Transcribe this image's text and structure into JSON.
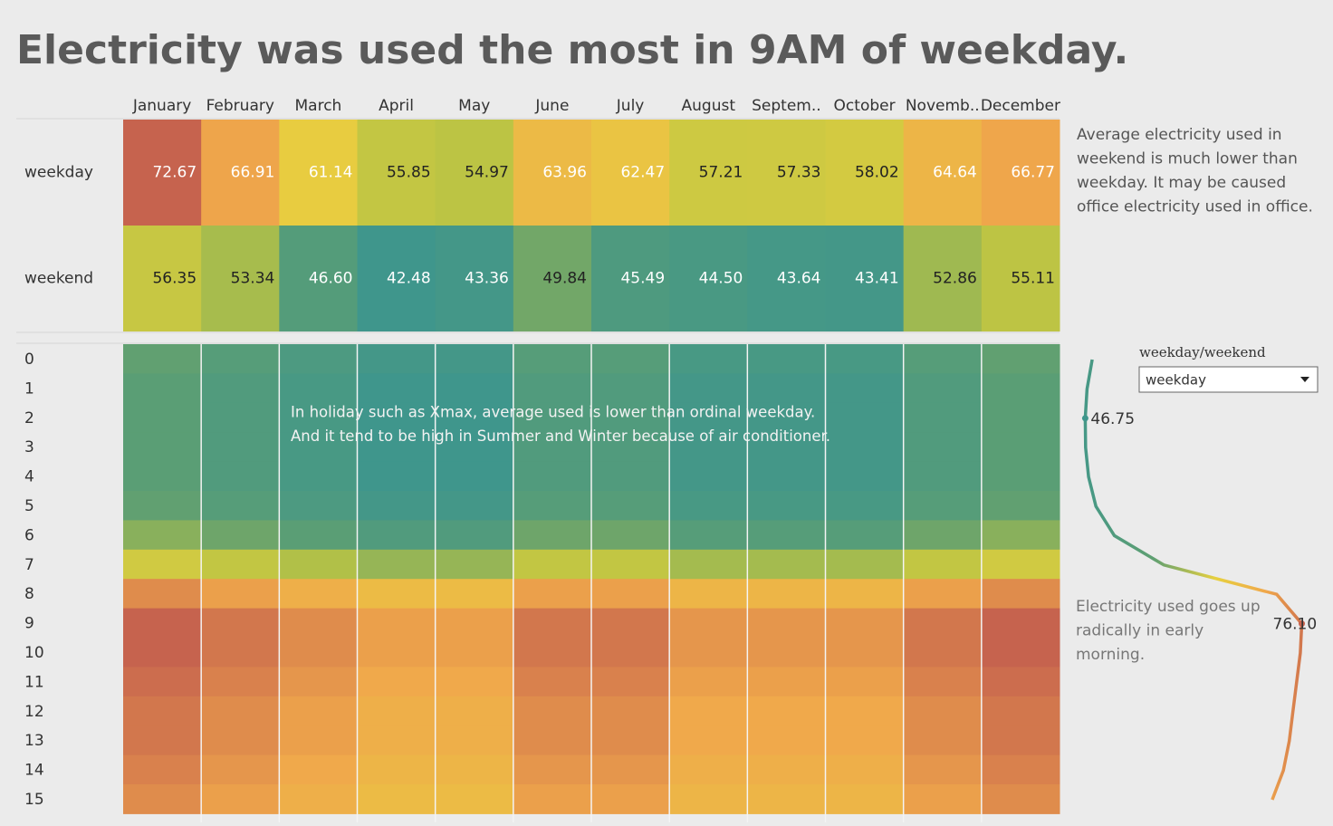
{
  "title": "Electricity was used the most in 9AM of weekday.",
  "chart_data": [
    {
      "type": "heatmap",
      "categories": [
        "January",
        "February",
        "March",
        "April",
        "May",
        "June",
        "July",
        "August",
        "Septem..",
        "October",
        "Novemb..",
        "December"
      ],
      "series": [
        {
          "name": "weekday",
          "values": [
            72.67,
            66.91,
            61.14,
            55.85,
            54.97,
            63.96,
            62.47,
            57.21,
            57.33,
            58.02,
            64.64,
            66.77
          ],
          "value_labels": [
            "72.67",
            "66.91",
            "61.14",
            "55.85",
            "54.97",
            "63.96",
            "62.47",
            "57.21",
            "57.33",
            "58.02",
            "64.64",
            "66.77"
          ]
        },
        {
          "name": "weekend",
          "values": [
            56.35,
            53.34,
            46.6,
            42.48,
            43.36,
            49.84,
            45.49,
            44.5,
            43.64,
            43.41,
            52.86,
            55.11
          ],
          "value_labels": [
            "56.35",
            "53.34",
            "46.60",
            "42.48",
            "43.36",
            "49.84",
            "45.49",
            "44.50",
            "43.64",
            "43.41",
            "52.86",
            "55.11"
          ]
        }
      ],
      "colors": [
        "#3f968c",
        "#5e9f72",
        "#b9c344",
        "#e7d03f",
        "#f0a84b",
        "#c6634e"
      ],
      "annotation": [
        "Average electricity used in",
        "weekend is much lower than",
        "weekday. It may be caused",
        "office electricity used in office."
      ]
    },
    {
      "type": "heatmap-detail",
      "y_categories": [
        "0",
        "1",
        "2",
        "3",
        "4",
        "5",
        "6",
        "7",
        "8",
        "9",
        "10",
        "11",
        "12",
        "13",
        "14",
        "15"
      ],
      "z": [
        [
          50,
          49,
          49,
          49,
          49,
          50,
          53,
          60,
          73,
          77,
          77,
          76,
          75,
          75,
          74,
          73
        ],
        [
          48,
          47,
          47,
          47,
          47,
          48,
          51,
          58,
          71,
          75,
          75,
          74,
          73,
          73,
          72,
          71
        ],
        [
          46,
          45,
          45,
          45,
          45,
          46,
          49,
          56,
          69,
          73,
          73,
          72,
          71,
          71,
          70,
          69
        ],
        [
          44,
          43,
          43,
          43,
          43,
          44,
          47,
          54,
          67,
          71,
          71,
          70,
          69,
          69,
          68,
          67
        ],
        [
          44,
          43,
          43,
          43,
          43,
          44,
          47,
          54,
          67,
          71,
          71,
          70,
          69,
          69,
          68,
          67
        ],
        [
          48,
          47,
          47,
          47,
          47,
          48,
          51,
          58,
          71,
          75,
          75,
          74,
          73,
          73,
          72,
          71
        ],
        [
          48,
          47,
          47,
          47,
          47,
          48,
          51,
          58,
          71,
          75,
          75,
          74,
          73,
          73,
          72,
          71
        ],
        [
          45,
          44,
          44,
          44,
          44,
          45,
          48,
          55,
          68,
          72,
          72,
          71,
          70,
          70,
          69,
          68
        ],
        [
          45,
          44,
          44,
          44,
          44,
          45,
          48,
          55,
          68,
          72,
          72,
          71,
          70,
          70,
          69,
          68
        ],
        [
          45,
          44,
          44,
          44,
          44,
          45,
          48,
          55,
          68,
          72,
          72,
          71,
          70,
          70,
          69,
          68
        ],
        [
          48,
          47,
          47,
          47,
          47,
          48,
          51,
          58,
          71,
          75,
          75,
          74,
          73,
          73,
          72,
          71
        ],
        [
          50,
          49,
          49,
          49,
          49,
          50,
          53,
          60,
          73,
          77,
          77,
          76,
          75,
          75,
          74,
          73
        ]
      ],
      "annotation": [
        "In holiday such as Xmax, average used is lower than ordinal weekday.",
        "And it tend to be high in Summer and Winter because of air conditioner."
      ]
    },
    {
      "type": "line",
      "values": [
        47.7,
        47.0,
        46.75,
        46.8,
        47.2,
        48.2,
        50.7,
        57.4,
        72.7,
        76.1,
        75.9,
        75.4,
        74.9,
        74.4,
        73.6,
        72.1
      ],
      "value_labels": [
        null,
        null,
        "46.75",
        null,
        null,
        null,
        null,
        null,
        null,
        "76.10",
        null,
        null,
        null,
        null,
        null,
        null
      ],
      "xlim": [
        44,
        78
      ],
      "annotation": [
        "Electricity used goes up",
        "radically in early",
        "morning."
      ]
    }
  ],
  "filter": {
    "label": "weekday/weekend",
    "value": "weekday"
  }
}
